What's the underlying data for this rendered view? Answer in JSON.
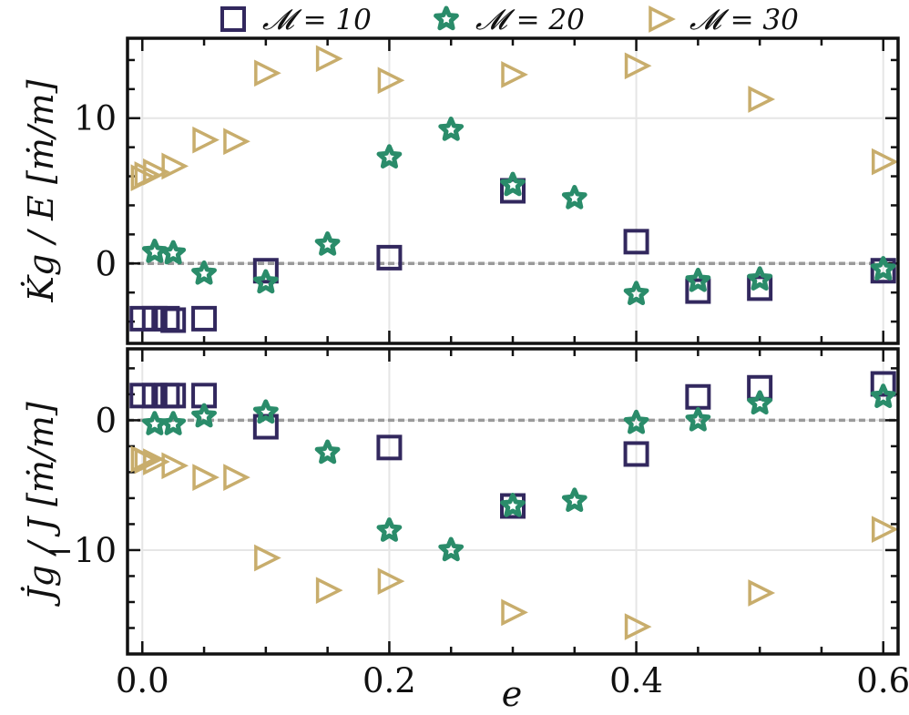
{
  "chart_data": [
    {
      "type": "scatter",
      "panel": "top",
      "ylabel": "K̇g / E [ṁ/m]",
      "xlabel": "",
      "xlim": [
        -0.012,
        0.612
      ],
      "ylim": [
        -5.5,
        15.5
      ],
      "yticks": [
        0,
        10
      ],
      "ytick_labels": [
        "0",
        "10"
      ],
      "reference_line": 0,
      "grid": true,
      "series": [
        {
          "name": "𝓜 = 10",
          "marker": "square",
          "color": "#32285e",
          "x": [
            0.0,
            0.01,
            0.02,
            0.025,
            0.05,
            0.1,
            0.2,
            0.3,
            0.4,
            0.45,
            0.5,
            0.6
          ],
          "y": [
            -3.8,
            -3.8,
            -3.8,
            -3.9,
            -3.8,
            -0.5,
            0.4,
            5.0,
            1.5,
            -1.9,
            -1.7,
            -0.5
          ]
        },
        {
          "name": "𝓜 = 20",
          "marker": "star",
          "color": "#2a8c6a",
          "x": [
            0.01,
            0.025,
            0.05,
            0.1,
            0.15,
            0.2,
            0.25,
            0.3,
            0.35,
            0.4,
            0.45,
            0.5,
            0.6
          ],
          "y": [
            0.8,
            0.7,
            -0.7,
            -1.3,
            1.3,
            7.3,
            9.2,
            5.4,
            4.5,
            -2.1,
            -1.2,
            -1.1,
            -0.4
          ]
        },
        {
          "name": "𝓜 = 30",
          "marker": "triangle-right",
          "color": "#c8ad6c",
          "x": [
            0.0,
            0.003,
            0.01,
            0.025,
            0.05,
            0.075,
            0.1,
            0.15,
            0.2,
            0.3,
            0.4,
            0.5,
            0.6
          ],
          "y": [
            5.9,
            6.1,
            6.3,
            6.7,
            8.5,
            8.4,
            13.1,
            14.1,
            12.6,
            13.0,
            13.6,
            11.3,
            7.0
          ]
        }
      ]
    },
    {
      "type": "scatter",
      "panel": "bottom",
      "ylabel": "J̇g / J [ṁ/m]",
      "xlabel": "e",
      "xlim": [
        -0.012,
        0.612
      ],
      "ylim": [
        -18,
        5.5
      ],
      "xticks": [
        0.0,
        0.2,
        0.4,
        0.6
      ],
      "xtick_labels": [
        "0.0",
        "0.2",
        "0.4",
        "0.6"
      ],
      "yticks": [
        0,
        -10
      ],
      "ytick_labels": [
        "0",
        "−10"
      ],
      "reference_line": 0,
      "grid": true,
      "series": [
        {
          "name": "𝓜 = 10",
          "marker": "square",
          "color": "#32285e",
          "x": [
            0.0,
            0.01,
            0.02,
            0.025,
            0.05,
            0.1,
            0.2,
            0.3,
            0.4,
            0.45,
            0.5,
            0.6
          ],
          "y": [
            1.9,
            1.9,
            1.9,
            1.9,
            1.9,
            -0.5,
            -2.1,
            -6.6,
            -2.6,
            1.8,
            2.5,
            2.8
          ]
        },
        {
          "name": "𝓜 = 20",
          "marker": "star",
          "color": "#2a8c6a",
          "x": [
            0.01,
            0.025,
            0.05,
            0.1,
            0.15,
            0.2,
            0.25,
            0.3,
            0.35,
            0.4,
            0.45,
            0.5,
            0.6
          ],
          "y": [
            -0.3,
            -0.3,
            0.3,
            0.6,
            -2.5,
            -8.5,
            -10.0,
            -6.6,
            -6.2,
            -0.2,
            0.0,
            1.3,
            1.8
          ]
        },
        {
          "name": "𝓜 = 30",
          "marker": "triangle-right",
          "color": "#c8ad6c",
          "x": [
            0.0,
            0.003,
            0.01,
            0.025,
            0.05,
            0.075,
            0.1,
            0.15,
            0.2,
            0.3,
            0.4,
            0.5,
            0.6
          ],
          "y": [
            -3.0,
            -3.1,
            -3.2,
            -3.5,
            -4.4,
            -4.4,
            -10.6,
            -13.1,
            -12.4,
            -14.8,
            -15.9,
            -13.3,
            -8.4
          ]
        }
      ]
    }
  ],
  "legend": {
    "placement": "top",
    "items": [
      {
        "label": "𝓜 = 10",
        "marker": "square",
        "color": "#32285e"
      },
      {
        "label": "𝓜 = 20",
        "marker": "star",
        "color": "#2a8c6a"
      },
      {
        "label": "𝓜 = 30",
        "marker": "triangle-right",
        "color": "#c8ad6c"
      }
    ]
  }
}
